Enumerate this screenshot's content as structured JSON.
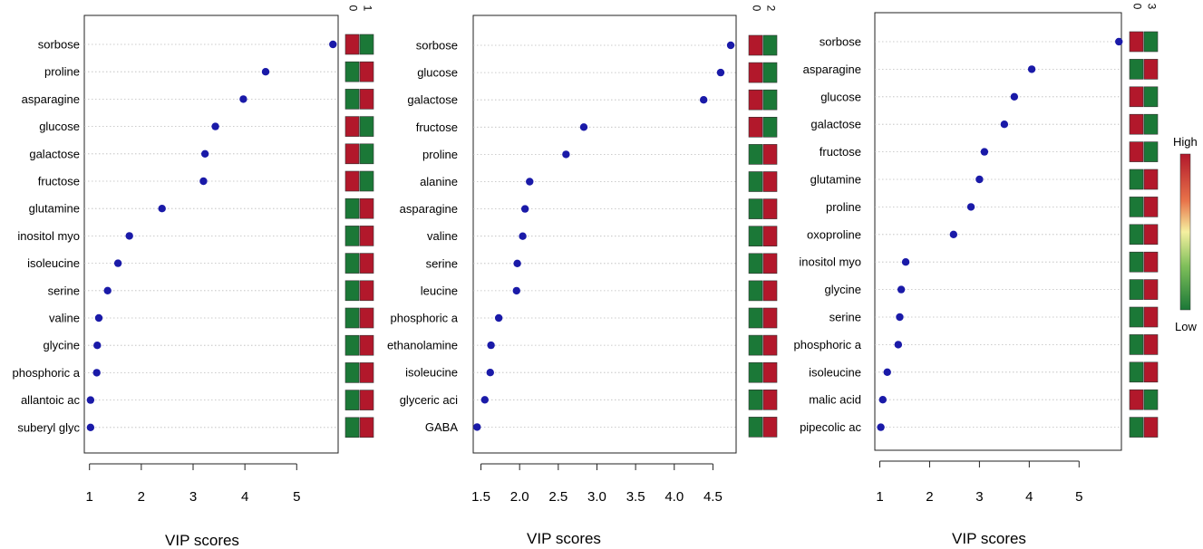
{
  "colors": {
    "high": "#b2182b",
    "low": "#1b7837",
    "point": "#1a1aa8",
    "grid": "#bbbbbb"
  },
  "legend": {
    "high_label": "High",
    "low_label": "Low"
  },
  "chart_data": [
    {
      "type": "scatter",
      "xlabel": "VIP scores",
      "xlim": [
        0.9,
        5.8
      ],
      "xticks": [
        "1",
        "2",
        "3",
        "4",
        "5"
      ],
      "group_labels": [
        "0",
        "1"
      ],
      "features": [
        "sorbose",
        "proline",
        "asparagine",
        "glucose",
        "galactose",
        "fructose",
        "glutamine",
        "inositol myo",
        "isoleucine",
        "serine",
        "valine",
        "glycine",
        "phosphoric a",
        "allantoic ac",
        "suberyl glyc"
      ],
      "vip": [
        5.7,
        4.4,
        3.97,
        3.43,
        3.23,
        3.2,
        2.4,
        1.77,
        1.55,
        1.35,
        1.18,
        1.15,
        1.14,
        1.02,
        1.02
      ],
      "heat": [
        [
          "high",
          "low"
        ],
        [
          "low",
          "high"
        ],
        [
          "low",
          "high"
        ],
        [
          "high",
          "low"
        ],
        [
          "high",
          "low"
        ],
        [
          "high",
          "low"
        ],
        [
          "low",
          "high"
        ],
        [
          "low",
          "high"
        ],
        [
          "low",
          "high"
        ],
        [
          "low",
          "high"
        ],
        [
          "low",
          "high"
        ],
        [
          "low",
          "high"
        ],
        [
          "low",
          "high"
        ],
        [
          "low",
          "high"
        ],
        [
          "low",
          "high"
        ]
      ]
    },
    {
      "type": "scatter",
      "xlabel": "VIP scores",
      "xlim": [
        1.4,
        4.8
      ],
      "xticks": [
        "1.5",
        "2.0",
        "2.5",
        "3.0",
        "3.5",
        "4.0",
        "4.5"
      ],
      "group_labels": [
        "0",
        "2"
      ],
      "features": [
        "sorbose",
        "glucose",
        "galactose",
        "fructose",
        "proline",
        "alanine",
        "asparagine",
        "valine",
        "serine",
        "leucine",
        "phosphoric a",
        "ethanolamine",
        "isoleucine",
        "glyceric aci",
        "GABA"
      ],
      "vip": [
        4.73,
        4.6,
        4.38,
        2.83,
        2.6,
        2.13,
        2.07,
        2.04,
        1.97,
        1.96,
        1.73,
        1.63,
        1.62,
        1.55,
        1.45
      ],
      "heat": [
        [
          "high",
          "low"
        ],
        [
          "high",
          "low"
        ],
        [
          "high",
          "low"
        ],
        [
          "high",
          "low"
        ],
        [
          "low",
          "high"
        ],
        [
          "low",
          "high"
        ],
        [
          "low",
          "high"
        ],
        [
          "low",
          "high"
        ],
        [
          "low",
          "high"
        ],
        [
          "low",
          "high"
        ],
        [
          "low",
          "high"
        ],
        [
          "low",
          "high"
        ],
        [
          "low",
          "high"
        ],
        [
          "low",
          "high"
        ],
        [
          "low",
          "high"
        ]
      ]
    },
    {
      "type": "scatter",
      "xlabel": "VIP scores",
      "xlim": [
        0.9,
        5.85
      ],
      "xticks": [
        "1",
        "2",
        "3",
        "4",
        "5"
      ],
      "group_labels": [
        "0",
        "3"
      ],
      "features": [
        "sorbose",
        "asparagine",
        "glucose",
        "galactose",
        "fructose",
        "glutamine",
        "proline",
        "oxoproline",
        "inositol myo",
        "glycine",
        "serine",
        "phosphoric a",
        "isoleucine",
        "malic acid",
        "pipecolic ac"
      ],
      "vip": [
        5.8,
        4.05,
        3.7,
        3.5,
        3.1,
        3.0,
        2.83,
        2.48,
        1.52,
        1.43,
        1.4,
        1.37,
        1.15,
        1.06,
        1.02
      ],
      "heat": [
        [
          "high",
          "low"
        ],
        [
          "low",
          "high"
        ],
        [
          "high",
          "low"
        ],
        [
          "high",
          "low"
        ],
        [
          "high",
          "low"
        ],
        [
          "low",
          "high"
        ],
        [
          "low",
          "high"
        ],
        [
          "low",
          "high"
        ],
        [
          "low",
          "high"
        ],
        [
          "low",
          "high"
        ],
        [
          "low",
          "high"
        ],
        [
          "low",
          "high"
        ],
        [
          "low",
          "high"
        ],
        [
          "high",
          "low"
        ],
        [
          "low",
          "high"
        ]
      ]
    }
  ]
}
